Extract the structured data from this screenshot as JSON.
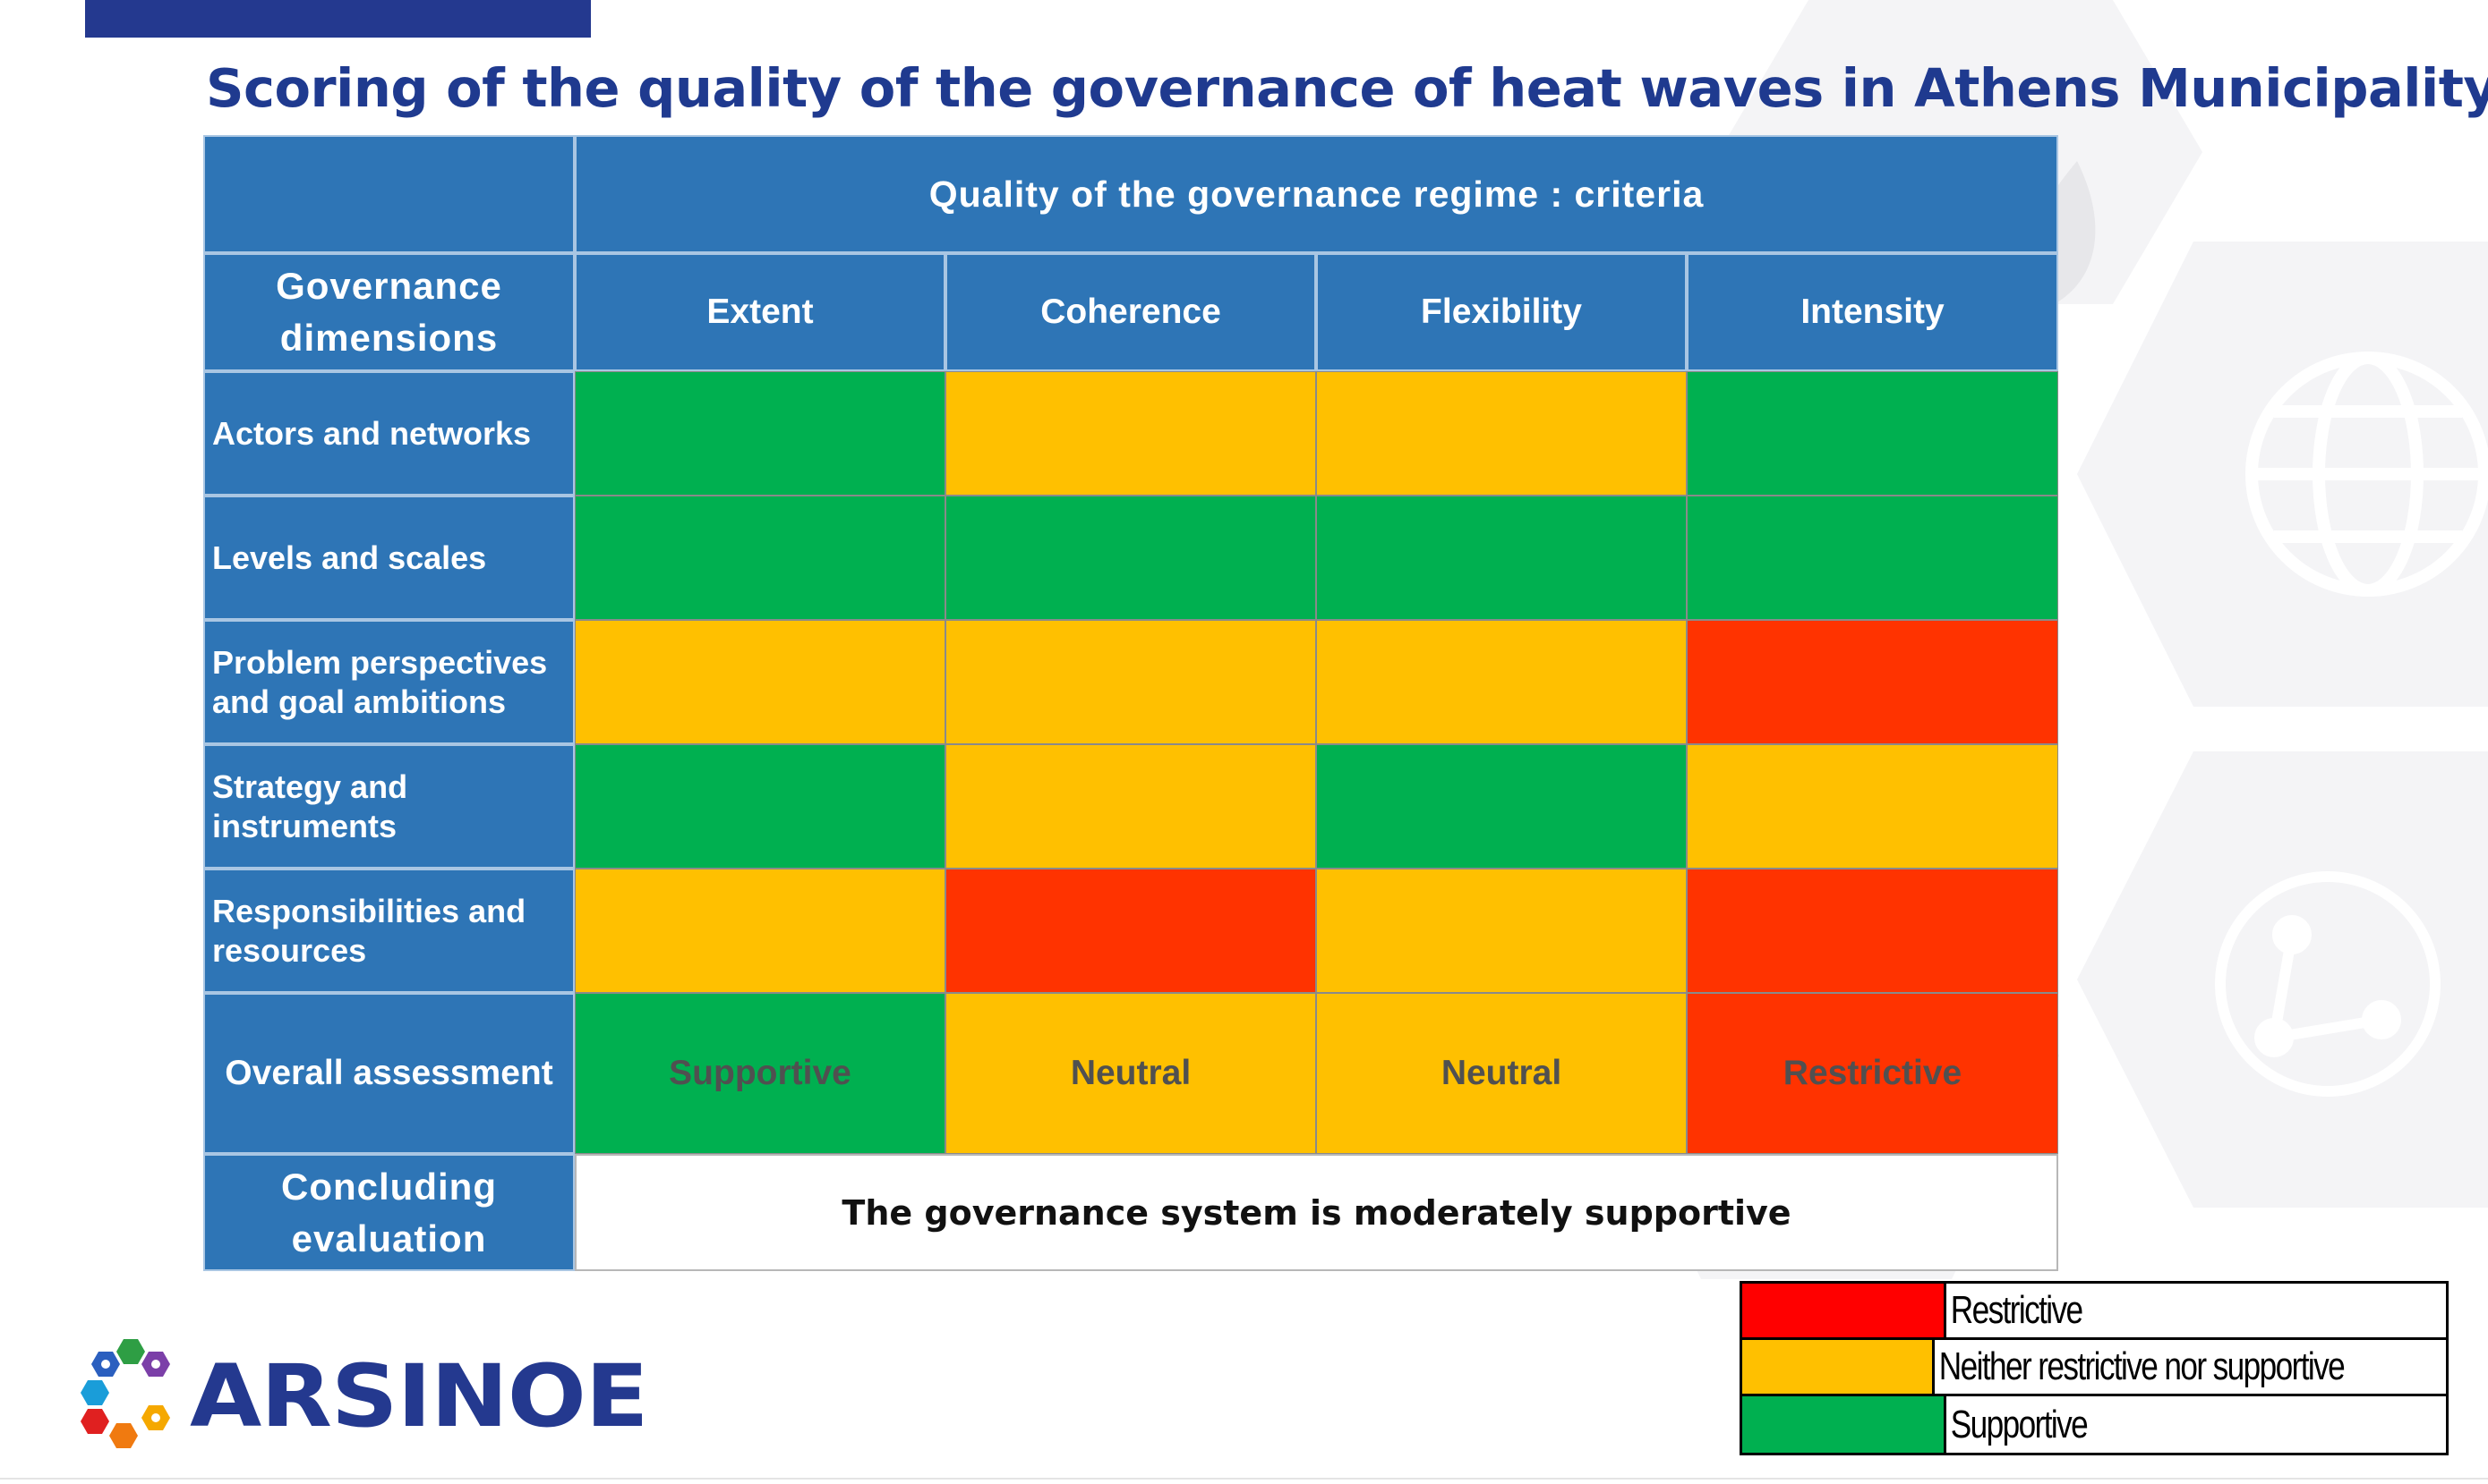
{
  "slide": {
    "title": "Scoring of the quality of the governance of heat waves in Athens Municipality"
  },
  "table": {
    "criteria_header": "Quality of the governance regime : criteria",
    "dimensions_header": "Governance dimensions",
    "columns": [
      "Extent",
      "Coherence",
      "Flexibility",
      "Intensity"
    ],
    "rows": [
      {
        "label": "Actors and networks",
        "scores": [
          "supportive",
          "neutral",
          "neutral",
          "supportive"
        ]
      },
      {
        "label": "Levels and scales",
        "scores": [
          "supportive",
          "supportive",
          "supportive",
          "supportive"
        ]
      },
      {
        "label": "Problem perspectives and goal ambitions",
        "scores": [
          "neutral",
          "neutral",
          "neutral",
          "restrictive"
        ]
      },
      {
        "label": "Strategy and instruments",
        "scores": [
          "supportive",
          "neutral",
          "supportive",
          "neutral"
        ]
      },
      {
        "label": "Responsibilities and resources",
        "scores": [
          "neutral",
          "restrictive",
          "neutral",
          "restrictive"
        ]
      }
    ],
    "overall": {
      "label": "Overall assessment",
      "values": [
        {
          "text": "Supportive",
          "score": "supportive"
        },
        {
          "text": "Neutral",
          "score": "neutral"
        },
        {
          "text": "Neutral",
          "score": "neutral"
        },
        {
          "text": "Restrictive",
          "score": "restrictive"
        }
      ]
    },
    "conclusion": {
      "label": "Concluding evaluation",
      "text": "The governance system is moderately supportive"
    }
  },
  "legend": [
    {
      "label": "Restrictive",
      "color": "#ff0000"
    },
    {
      "label": "Neither restrictive nor supportive",
      "color": "#ffc000"
    },
    {
      "label": "Supportive",
      "color": "#00b050"
    }
  ],
  "score_colors": {
    "supportive": "#00b050",
    "neutral": "#ffc000",
    "restrictive": "#ff3300"
  },
  "logo": {
    "text": "ARSINOE"
  }
}
